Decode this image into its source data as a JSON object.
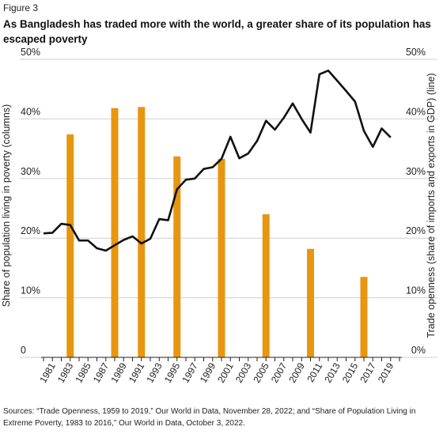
{
  "figure_label": "Figure 3",
  "title": "As Bangladesh has traded more with the world, a greater share of its population has escaped poverty",
  "source": "Sources: “Trade Openness, 1959 to 2019,” Our World in Data, November 28, 2022; and “Share of Population Living in Extreme Poverty, 1983 to 2016,” Our World in Data, October 3, 2022.",
  "chart_data": {
    "type": "bar",
    "x_ticks": [
      "1981",
      "1983",
      "1985",
      "1987",
      "1989",
      "1991",
      "1993",
      "1995",
      "1997",
      "1999",
      "2001",
      "2003",
      "2005",
      "2007",
      "2009",
      "2011",
      "2013",
      "2015",
      "2017",
      "2019"
    ],
    "left_axis": {
      "label": "Share of population living in poverty (columns)",
      "ticks": [
        "0",
        "10%",
        "20%",
        "30%",
        "40%",
        "50%"
      ],
      "range": [
        0,
        50
      ]
    },
    "right_axis": {
      "label": "Trade openness (share of imports and exports in GDP) (line)",
      "ticks": [
        "0%",
        "10%",
        "20%",
        "30%",
        "40%",
        "50%"
      ],
      "range": [
        0,
        50
      ]
    },
    "bars": {
      "color": "#E8950F",
      "points": [
        {
          "year": 1983,
          "value": 37.4
        },
        {
          "year": 1988,
          "value": 41.8
        },
        {
          "year": 1991,
          "value": 42.0
        },
        {
          "year": 1995,
          "value": 33.7
        },
        {
          "year": 2000,
          "value": 33.3
        },
        {
          "year": 2005,
          "value": 24.0
        },
        {
          "year": 2010,
          "value": 18.2
        },
        {
          "year": 2016,
          "value": 13.5
        }
      ]
    },
    "line": {
      "color": "#111111",
      "points": [
        {
          "year": 1980,
          "value": 20.8
        },
        {
          "year": 1981,
          "value": 20.9
        },
        {
          "year": 1982,
          "value": 22.4
        },
        {
          "year": 1983,
          "value": 22.2
        },
        {
          "year": 1984,
          "value": 19.6
        },
        {
          "year": 1985,
          "value": 19.6
        },
        {
          "year": 1986,
          "value": 18.3
        },
        {
          "year": 1987,
          "value": 17.9
        },
        {
          "year": 1988,
          "value": 18.8
        },
        {
          "year": 1989,
          "value": 19.7
        },
        {
          "year": 1990,
          "value": 20.3
        },
        {
          "year": 1991,
          "value": 19.1
        },
        {
          "year": 1992,
          "value": 19.9
        },
        {
          "year": 1993,
          "value": 23.2
        },
        {
          "year": 1994,
          "value": 23.0
        },
        {
          "year": 1995,
          "value": 28.2
        },
        {
          "year": 1996,
          "value": 29.8
        },
        {
          "year": 1997,
          "value": 30.0
        },
        {
          "year": 1998,
          "value": 31.6
        },
        {
          "year": 1999,
          "value": 31.9
        },
        {
          "year": 2000,
          "value": 33.3
        },
        {
          "year": 2001,
          "value": 37.0
        },
        {
          "year": 2002,
          "value": 33.4
        },
        {
          "year": 2003,
          "value": 34.2
        },
        {
          "year": 2004,
          "value": 36.3
        },
        {
          "year": 2005,
          "value": 39.7
        },
        {
          "year": 2006,
          "value": 38.2
        },
        {
          "year": 2007,
          "value": 40.2
        },
        {
          "year": 2008,
          "value": 42.6
        },
        {
          "year": 2009,
          "value": 40.0
        },
        {
          "year": 2010,
          "value": 37.7
        },
        {
          "year": 2011,
          "value": 47.5
        },
        {
          "year": 2012,
          "value": 48.1
        },
        {
          "year": 2013,
          "value": 46.4
        },
        {
          "year": 2014,
          "value": 44.7
        },
        {
          "year": 2015,
          "value": 42.9
        },
        {
          "year": 2016,
          "value": 38.0
        },
        {
          "year": 2017,
          "value": 35.3
        },
        {
          "year": 2018,
          "value": 38.4
        },
        {
          "year": 2019,
          "value": 36.9
        }
      ]
    },
    "grid": "horizontal"
  }
}
